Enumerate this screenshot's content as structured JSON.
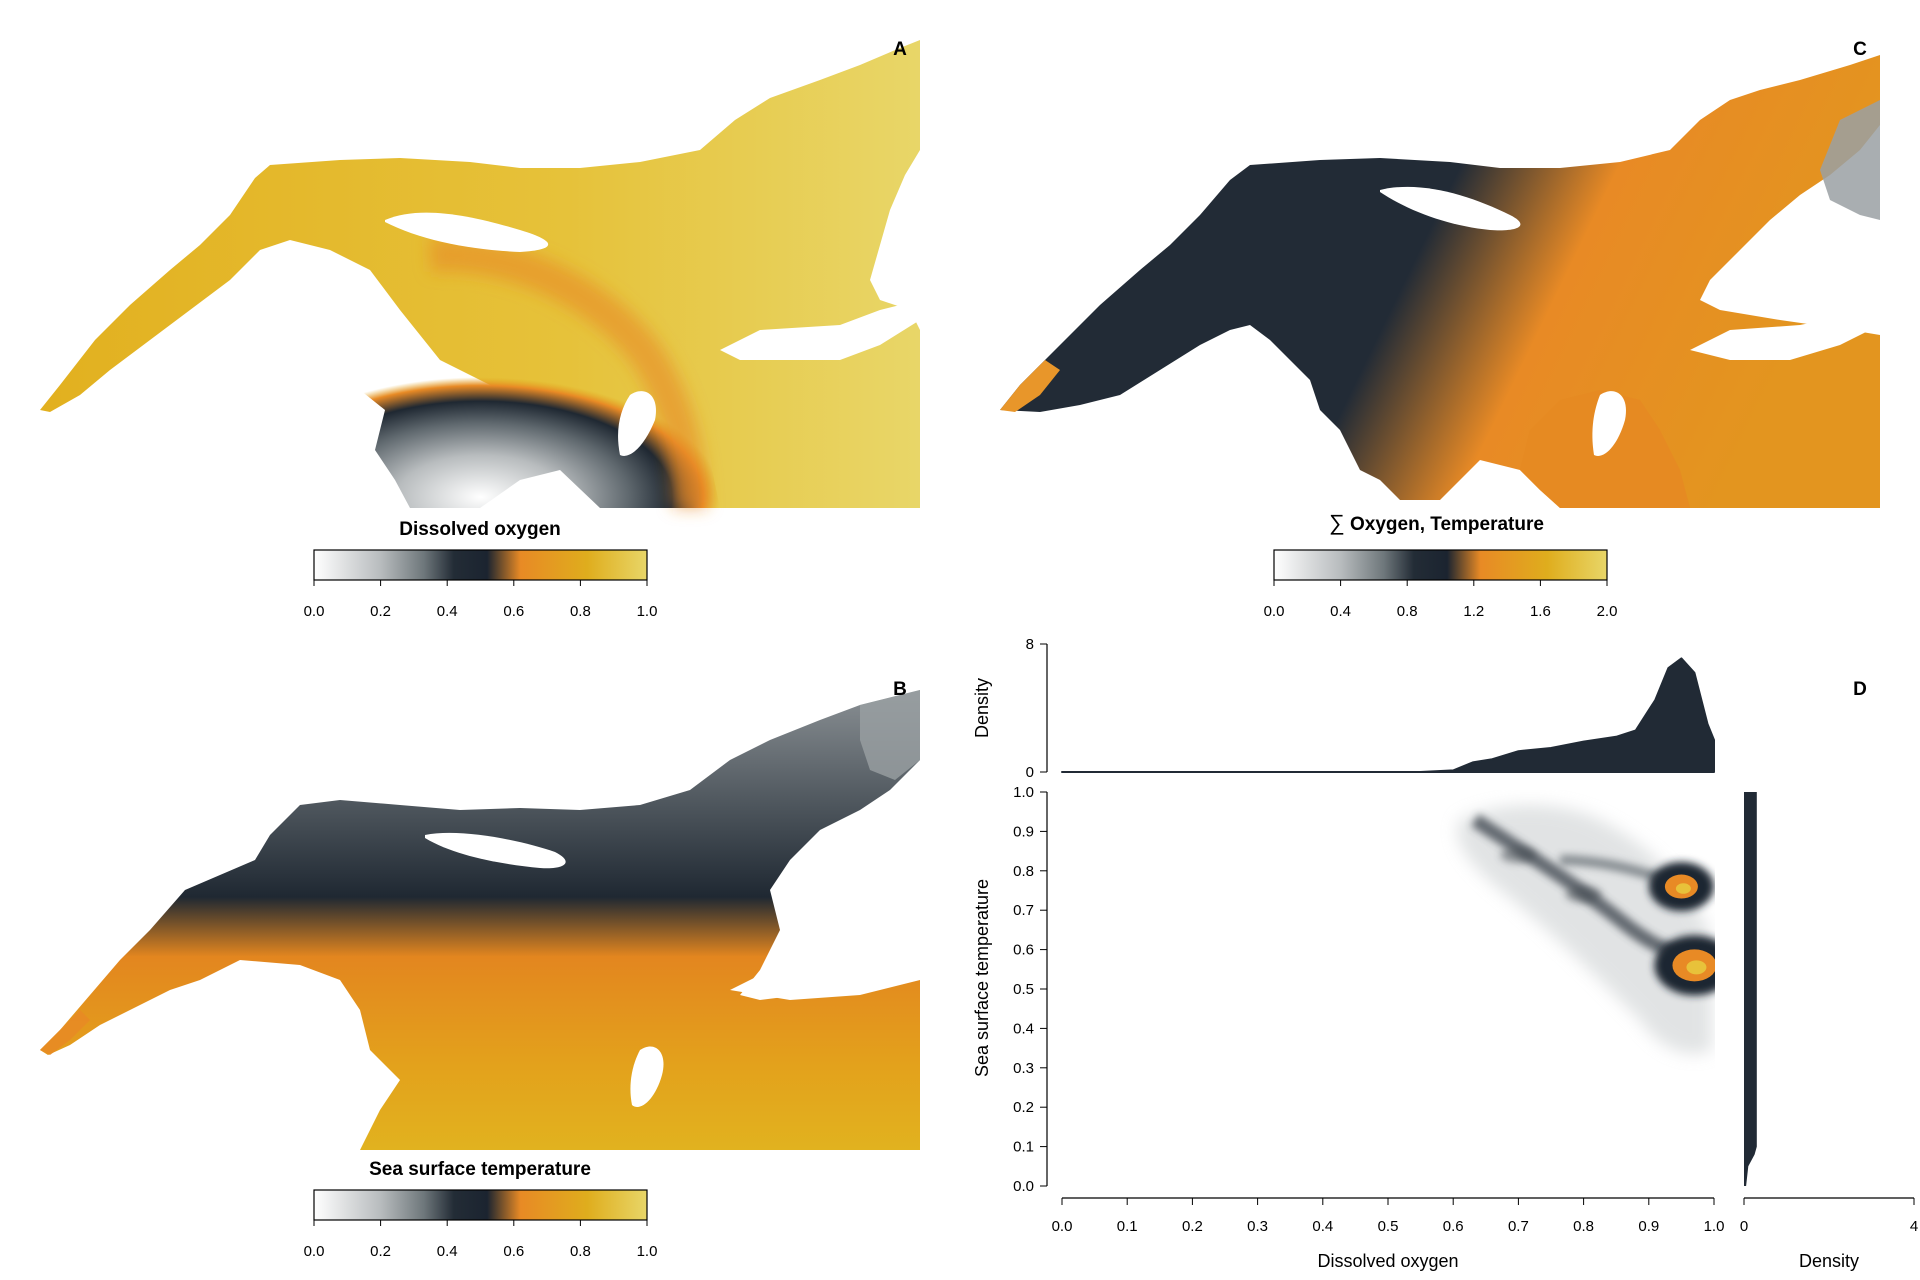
{
  "colors": {
    "ramp": [
      "#ffffff",
      "#b8bcbe",
      "#6e777b",
      "#232c36",
      "#1b2430",
      "#e88a25",
      "#dfad1d",
      "#e8d668"
    ],
    "dark": "#212a35",
    "background": "#ffffff"
  },
  "panels": {
    "A": {
      "letter": "A",
      "title": "Dissolved oxygen",
      "ticks": [
        "0.0",
        "0.2",
        "0.4",
        "0.6",
        "0.8",
        "1.0"
      ]
    },
    "B": {
      "letter": "B",
      "title": "Sea surface temperature",
      "ticks": [
        "0.0",
        "0.2",
        "0.4",
        "0.6",
        "0.8",
        "1.0"
      ]
    },
    "C": {
      "letter": "C",
      "title_symbol": "∑",
      "title": "Oxygen, Temperature",
      "ticks": [
        "0.0",
        "0.4",
        "0.8",
        "1.2",
        "1.6",
        "2.0"
      ]
    },
    "D": {
      "letter": "D"
    }
  },
  "chart_data": [
    {
      "type": "heatmap",
      "panel": "A",
      "legend_range": [
        0,
        1
      ],
      "legend_title": "Dissolved oxygen"
    },
    {
      "type": "heatmap",
      "panel": "B",
      "legend_range": [
        0,
        1
      ],
      "legend_title": "Sea surface temperature"
    },
    {
      "type": "heatmap",
      "panel": "C",
      "legend_range": [
        0,
        2
      ],
      "legend_title": "∑Oxygen, Temperature"
    },
    {
      "type": "heatmap",
      "panel": "D",
      "xlabel": "Dissolved oxygen",
      "ylabel": "Sea surface temperature",
      "xlim": [
        0,
        1
      ],
      "ylim": [
        0,
        1
      ],
      "xticks": [
        "0.0",
        "0.1",
        "0.2",
        "0.3",
        "0.4",
        "0.5",
        "0.6",
        "0.7",
        "0.8",
        "0.9",
        "1.0"
      ],
      "yticks": [
        "0.0",
        "0.1",
        "0.2",
        "0.3",
        "0.4",
        "0.5",
        "0.6",
        "0.7",
        "0.8",
        "0.9",
        "1.0"
      ],
      "density_peaks": [
        {
          "x": 0.97,
          "y": 0.56,
          "weight": 1.0
        },
        {
          "x": 0.95,
          "y": 0.76,
          "weight": 0.75
        },
        {
          "x": 0.8,
          "y": 0.74,
          "weight": 0.45
        },
        {
          "x": 0.7,
          "y": 0.84,
          "weight": 0.3
        }
      ],
      "top_marginal": {
        "ylabel": "Density",
        "ylim": [
          0,
          8
        ],
        "yticks": [
          "0",
          "8"
        ],
        "x": [
          0.0,
          0.55,
          0.6,
          0.63,
          0.66,
          0.7,
          0.75,
          0.8,
          0.85,
          0.88,
          0.91,
          0.93,
          0.95,
          0.97,
          0.99,
          1.0
        ],
        "y": [
          0.0,
          0.0,
          0.1,
          0.6,
          0.8,
          1.3,
          1.5,
          1.9,
          2.2,
          2.6,
          4.5,
          6.5,
          7.1,
          6.2,
          3.0,
          2.0
        ]
      },
      "right_marginal": {
        "xlabel": "Density",
        "xlim": [
          0,
          4
        ],
        "xticks": [
          "0",
          "4"
        ],
        "y": [
          0.0,
          0.05,
          0.08,
          0.1,
          0.98,
          1.0
        ],
        "x": [
          0.05,
          0.1,
          0.25,
          0.3,
          0.3,
          0.3
        ]
      }
    }
  ]
}
